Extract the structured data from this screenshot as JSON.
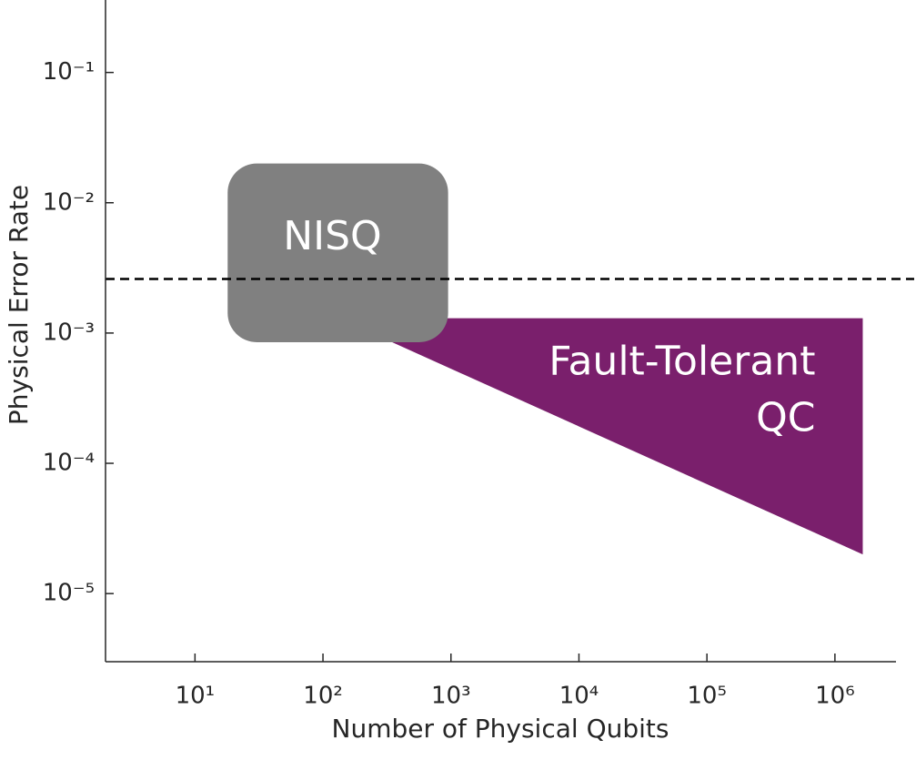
{
  "chart_data": {
    "type": "region",
    "xlabel": "Number of Physical Qubits",
    "ylabel": "Physical Error Rate",
    "xscale": "log",
    "yscale": "log",
    "xlim": [
      2,
      3000000
    ],
    "ylim": [
      3e-06,
      0.36
    ],
    "xticks": [
      {
        "value": 10,
        "label": "10¹"
      },
      {
        "value": 100,
        "label": "10²"
      },
      {
        "value": 1000,
        "label": "10³"
      },
      {
        "value": 10000,
        "label": "10⁴"
      },
      {
        "value": 100000,
        "label": "10⁵"
      },
      {
        "value": 1000000,
        "label": "10⁶"
      }
    ],
    "yticks": [
      {
        "value": 0.1,
        "label": "10⁻¹"
      },
      {
        "value": 0.01,
        "label": "10⁻²"
      },
      {
        "value": 0.001,
        "label": "10⁻³"
      },
      {
        "value": 0.0001,
        "label": "10⁻⁴"
      },
      {
        "value": 1e-05,
        "label": "10⁻⁵"
      }
    ],
    "regions": [
      {
        "label": [
          "Fault-Tolerant",
          "QC"
        ],
        "color": "#7a1f6c",
        "shape": "polygon",
        "x": [
          133,
          1650000,
          1650000
        ],
        "y": [
          0.0013,
          0.0013,
          2e-05
        ]
      },
      {
        "label": [
          "NISQ"
        ],
        "color": "#808080",
        "shape": "rounded-rect",
        "x": [
          18,
          950
        ],
        "y": [
          0.00085,
          0.02
        ]
      }
    ],
    "hlines": [
      {
        "value": 0.0026,
        "color": "#000000",
        "style": "dashed"
      }
    ]
  }
}
